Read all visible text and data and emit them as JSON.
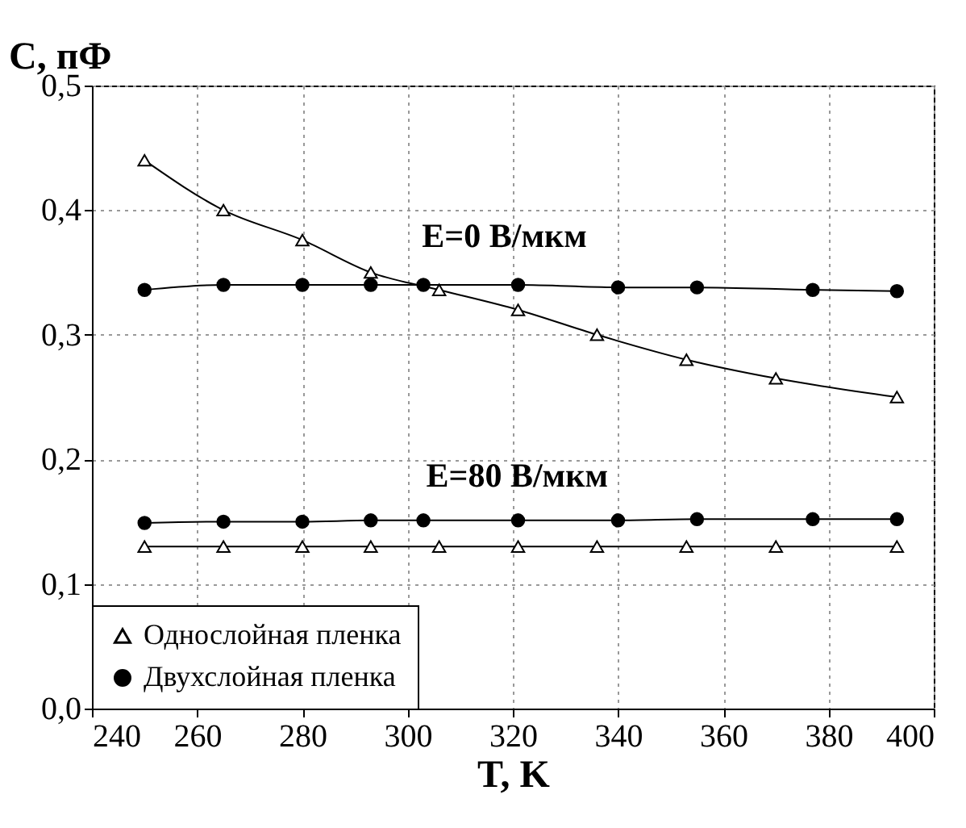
{
  "chart_data": {
    "type": "line",
    "ylabel": "C, пФ",
    "xlabel": "T, K",
    "xlim": [
      240,
      400
    ],
    "xticks": [
      240,
      260,
      280,
      300,
      320,
      340,
      360,
      380,
      400
    ],
    "ylim": [
      0,
      0.5
    ],
    "yticks": [
      {
        "value": 0,
        "label": "0,0"
      },
      {
        "value": 0.1,
        "label": "0,1"
      },
      {
        "value": 0.2,
        "label": "0,2"
      },
      {
        "value": 0.3,
        "label": "0,3"
      },
      {
        "value": 0.4,
        "label": "0,4"
      },
      {
        "value": 0.5,
        "label": "0,5"
      }
    ],
    "grid": true,
    "legend": "bottom left",
    "line_style": "solid",
    "annotations": [
      "E=0 В/мкм",
      "E=80 В/мкм"
    ],
    "series": [
      {
        "name": "Однослойная пленка",
        "color": "#000000",
        "marker": "triangle",
        "x": [
          250,
          265,
          280,
          293,
          306,
          321,
          336,
          353,
          370,
          393
        ],
        "values": [
          0.44,
          0.4,
          0.376,
          0.35,
          0.336,
          0.32,
          0.3,
          0.28,
          0.265,
          0.25
        ]
      },
      {
        "name": "Двухслойная пленка",
        "color": "#000000",
        "marker": "circle",
        "x": [
          250,
          265,
          280,
          293,
          303,
          321,
          340,
          355,
          377,
          393
        ],
        "values": [
          0.336,
          0.34,
          0.34,
          0.34,
          0.34,
          0.34,
          0.338,
          0.338,
          0.336,
          0.335
        ]
      },
      {
        "color": "#000000",
        "marker": "triangle",
        "x": [
          250,
          265,
          280,
          293,
          306,
          321,
          336,
          353,
          370,
          393
        ],
        "values": [
          0.13,
          0.13,
          0.13,
          0.13,
          0.13,
          0.13,
          0.13,
          0.13,
          0.13,
          0.13
        ]
      },
      {
        "color": "#000000",
        "marker": "circle",
        "x": [
          250,
          265,
          280,
          293,
          303,
          321,
          340,
          355,
          377,
          393
        ],
        "values": [
          0.149,
          0.15,
          0.15,
          0.151,
          0.151,
          0.151,
          0.151,
          0.152,
          0.152,
          0.152
        ]
      }
    ]
  }
}
